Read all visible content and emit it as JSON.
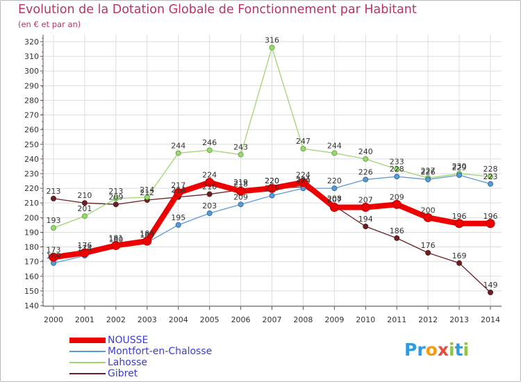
{
  "header": {
    "title": "Evolution de la Dotation Globale de Fonctionnement par Habitant",
    "subtitle": "(en € et par an)"
  },
  "logo": {
    "text": "Proxiti",
    "letters": [
      "P",
      "r",
      "o",
      "x",
      "i",
      "t",
      "i"
    ],
    "colors": [
      "#2e9be0",
      "#2e9be0",
      "#f39c12",
      "#e74c3c",
      "#8dc63f",
      "#2e9be0",
      "#8dc63f"
    ]
  },
  "chart_data": {
    "type": "line",
    "title": "Evolution de la Dotation Globale de Fonctionnement par Habitant",
    "subtitle": "(en € et par an)",
    "xlabel": "",
    "ylabel": "",
    "x": [
      "2000",
      "2001",
      "2002",
      "2003",
      "2004",
      "2005",
      "2006",
      "2007",
      "2008",
      "2009",
      "2010",
      "2011",
      "2012",
      "2013",
      "2014"
    ],
    "ylim": [
      140,
      320
    ],
    "yticks": [
      "140",
      "150",
      "160",
      "170",
      "180",
      "190",
      "200",
      "210",
      "220",
      "230",
      "240",
      "250",
      "260",
      "270",
      "280",
      "290",
      "300",
      "310",
      "320"
    ],
    "grid": true,
    "legend_position": "bottom-left",
    "series": [
      {
        "name": "Gibret",
        "color": "#6b1f24",
        "values": [
          213,
          210,
          209,
          212,
          214,
          216,
          219,
          220,
          221,
          208,
          194,
          186,
          176,
          169,
          149
        ],
        "labels": [
          "213",
          "210",
          "209",
          "212",
          "214",
          "216",
          "219",
          "220",
          "221",
          "208",
          "194",
          "186",
          "176",
          "169",
          "149"
        ]
      },
      {
        "name": "Lahosse",
        "color": "#9ed672",
        "values": [
          193,
          201,
          213,
          214,
          244,
          246,
          243,
          316,
          247,
          244,
          240,
          233,
          227,
          230,
          228
        ],
        "labels": [
          "193",
          "201",
          "213",
          "214",
          "244",
          "246",
          "243",
          "316",
          "247",
          "244",
          "240",
          "233",
          "227",
          "230",
          "228"
        ]
      },
      {
        "name": "Montfort-en-Chalosse",
        "color": "#5a9bd4",
        "values": [
          169,
          174,
          180,
          183,
          195,
          203,
          209,
          215,
          220,
          220,
          226,
          228,
          226,
          229,
          223
        ],
        "labels": [
          "169",
          "174",
          "180",
          "183",
          "195",
          "203",
          "209",
          "215",
          "220",
          "220",
          "226",
          "228",
          "226",
          "229",
          "223"
        ]
      },
      {
        "name": "NOUSSE",
        "color": "#ee0000",
        "values": [
          173,
          176,
          181,
          184,
          217,
          224,
          218,
          220,
          224,
          207,
          207,
          209,
          200,
          196,
          196
        ],
        "labels": [
          "173",
          "176",
          "181",
          "184",
          "217",
          "224",
          "218",
          "220",
          "224",
          "207",
          "207",
          "209",
          "200",
          "196",
          "196"
        ]
      }
    ]
  }
}
